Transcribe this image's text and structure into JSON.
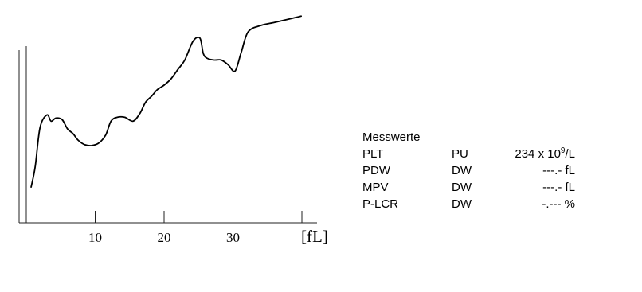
{
  "chart_data": {
    "type": "line",
    "xlabel": "[fL]",
    "xticks": [
      10,
      20,
      30
    ],
    "marker_lines_x": [
      0,
      30
    ],
    "series": [
      {
        "x": [
          0.7,
          1.3,
          2.0,
          3.0,
          3.6,
          4.3,
          5.2,
          6.0,
          6.8,
          7.5,
          8.5,
          9.5,
          10.5,
          11.5,
          12.3,
          13.2,
          14.3,
          15.5,
          16.5,
          17.3,
          18.2,
          19.0,
          20.0,
          21.0,
          22.0,
          23.0,
          24.2,
          25.2,
          25.7,
          26.3,
          27.3,
          28.3,
          29.3,
          30.3,
          31.2,
          32.2,
          34.0,
          36.0,
          38.0,
          39.9
        ],
        "y": [
          0.02,
          0.15,
          0.4,
          0.48,
          0.44,
          0.46,
          0.45,
          0.39,
          0.36,
          0.32,
          0.29,
          0.285,
          0.3,
          0.35,
          0.44,
          0.465,
          0.465,
          0.44,
          0.49,
          0.56,
          0.6,
          0.64,
          0.67,
          0.71,
          0.77,
          0.83,
          0.95,
          0.97,
          0.87,
          0.84,
          0.83,
          0.83,
          0.8,
          0.76,
          0.88,
          1.01,
          1.05,
          1.07,
          1.09,
          1.11
        ]
      }
    ]
  },
  "values": {
    "title": "Messwerte",
    "rows": [
      {
        "name": "PLT",
        "unit": "PU",
        "value": "234 x 10",
        "exp": "9",
        "suffix": "/L"
      },
      {
        "name": "PDW",
        "unit": "DW",
        "value": "---.- fL"
      },
      {
        "name": "MPV",
        "unit": "DW",
        "value": "---.- fL"
      },
      {
        "name": "P-LCR",
        "unit": "DW",
        "value": "-.--- %"
      }
    ]
  }
}
